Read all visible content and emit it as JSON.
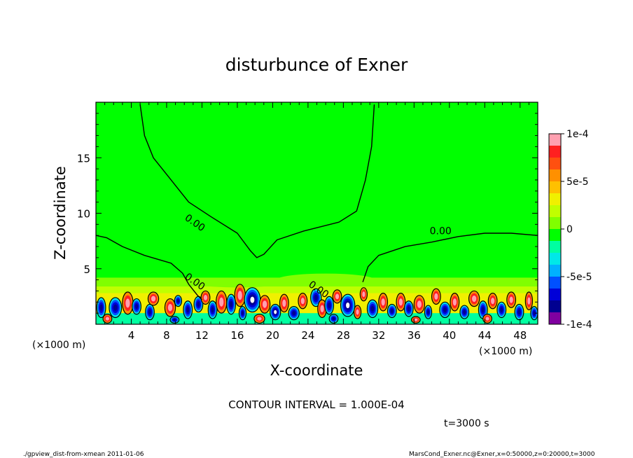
{
  "chart_data": {
    "type": "heatmap",
    "title": "disturbunce of Exner",
    "xlabel": "X-coordinate",
    "ylabel": "Z-coordinate",
    "x_unit_left": "(×1000 m)",
    "x_unit_right": "(×1000 m)",
    "xlim": [
      0,
      50
    ],
    "ylim": [
      0,
      20
    ],
    "x_ticks": [
      4,
      8,
      12,
      16,
      20,
      24,
      28,
      32,
      36,
      40,
      44,
      48
    ],
    "x_tick_labels": [
      "4",
      "8",
      "12",
      "16",
      "20",
      "24",
      "28",
      "32",
      "36",
      "40",
      "44",
      "48"
    ],
    "y_ticks": [
      5,
      10,
      15
    ],
    "y_tick_labels": [
      "5",
      "10",
      "15"
    ],
    "grid": false,
    "contour_labels": [
      {
        "text": "0.00",
        "x": 11,
        "y": 8.9
      },
      {
        "text": "0.00",
        "x": 39,
        "y": 8.1
      },
      {
        "text": "0.00",
        "x": 11,
        "y": 3.6
      },
      {
        "text": "0.00",
        "x": 25,
        "y": 2.9
      }
    ],
    "zero_contour_upper": [
      [
        5.0,
        19.8
      ],
      [
        5.5,
        17.0
      ],
      [
        6.5,
        15.0
      ],
      [
        8.5,
        13.0
      ],
      [
        10.5,
        11.0
      ],
      [
        13.0,
        9.7
      ],
      [
        16.0,
        8.2
      ],
      [
        17.5,
        6.6
      ],
      [
        18.2,
        6.0
      ],
      [
        19.0,
        6.3
      ],
      [
        20.5,
        7.6
      ],
      [
        23.5,
        8.4
      ],
      [
        27.5,
        9.2
      ],
      [
        29.5,
        10.2
      ],
      [
        30.5,
        13.0
      ],
      [
        31.2,
        16.0
      ],
      [
        31.5,
        19.8
      ]
    ],
    "zero_contour_left": [
      [
        0,
        8.0
      ],
      [
        1.2,
        7.8
      ],
      [
        3.0,
        7.0
      ],
      [
        5.5,
        6.2
      ],
      [
        8.5,
        5.5
      ],
      [
        9.8,
        4.6
      ],
      [
        10.5,
        3.6
      ],
      [
        11.5,
        2.6
      ],
      [
        12.0,
        2.2
      ]
    ],
    "zero_contour_right": [
      [
        30.2,
        3.8
      ],
      [
        30.8,
        5.2
      ],
      [
        32.0,
        6.2
      ],
      [
        35.0,
        7.0
      ],
      [
        38.0,
        7.4
      ],
      [
        41.0,
        7.9
      ],
      [
        44.0,
        8.2
      ],
      [
        47.0,
        8.2
      ],
      [
        50.0,
        8.0
      ]
    ],
    "colorbar": {
      "min": -0.0001,
      "max": 0.0001,
      "tick_labels": [
        "1e-4",
        "5e-5",
        "0",
        "-5e-5",
        "-1e-4"
      ],
      "colors": [
        "#ffa0b0",
        "#ff2020",
        "#ff5010",
        "#ff9000",
        "#ffc000",
        "#f0f000",
        "#c0ff00",
        "#80ff00",
        "#00ff00",
        "#00ffa0",
        "#00e8e8",
        "#00b0ff",
        "#0050ff",
        "#0000d8",
        "#000090",
        "#8000a0"
      ]
    },
    "blobs": [
      [
        0.6,
        1.5,
        0.5,
        0.9,
        -1
      ],
      [
        2.2,
        1.5,
        0.7,
        0.9,
        -1
      ],
      [
        3.6,
        1.9,
        0.6,
        1.0,
        1
      ],
      [
        4.6,
        1.6,
        0.5,
        0.7,
        -1
      ],
      [
        6.1,
        1.1,
        0.5,
        0.7,
        -1
      ],
      [
        6.5,
        2.3,
        0.6,
        0.6,
        1
      ],
      [
        8.4,
        1.5,
        0.6,
        0.8,
        1
      ],
      [
        9.3,
        2.1,
        0.4,
        0.5,
        -1
      ],
      [
        10.4,
        1.3,
        0.5,
        0.8,
        -1
      ],
      [
        11.6,
        1.8,
        0.5,
        0.7,
        -1
      ],
      [
        12.4,
        2.4,
        0.5,
        0.6,
        1
      ],
      [
        13.2,
        1.3,
        0.5,
        0.8,
        -1
      ],
      [
        14.2,
        2.0,
        0.6,
        1.0,
        1
      ],
      [
        15.3,
        1.8,
        0.5,
        0.9,
        -1
      ],
      [
        16.3,
        2.6,
        0.6,
        1.0,
        1
      ],
      [
        16.6,
        1.0,
        0.4,
        0.6,
        -1
      ],
      [
        17.7,
        2.2,
        0.9,
        1.1,
        -2
      ],
      [
        19.1,
        1.8,
        0.6,
        0.8,
        1
      ],
      [
        20.3,
        1.1,
        0.6,
        0.7,
        -2
      ],
      [
        21.3,
        1.9,
        0.5,
        0.8,
        1
      ],
      [
        22.4,
        1.0,
        0.6,
        0.6,
        -1
      ],
      [
        23.4,
        2.1,
        0.5,
        0.7,
        1
      ],
      [
        24.9,
        2.4,
        0.6,
        0.8,
        -1
      ],
      [
        25.6,
        1.4,
        0.5,
        0.8,
        1
      ],
      [
        26.4,
        1.7,
        0.5,
        0.8,
        -1
      ],
      [
        27.3,
        2.5,
        0.5,
        0.6,
        1
      ],
      [
        28.5,
        1.7,
        0.8,
        1.0,
        -2
      ],
      [
        29.6,
        1.1,
        0.4,
        0.6,
        1
      ],
      [
        30.3,
        2.7,
        0.4,
        0.6,
        1
      ],
      [
        31.3,
        1.4,
        0.6,
        0.8,
        -1
      ],
      [
        32.5,
        2.0,
        0.5,
        0.8,
        1
      ],
      [
        33.5,
        1.2,
        0.5,
        0.6,
        -1
      ],
      [
        34.5,
        2.0,
        0.5,
        0.8,
        1
      ],
      [
        35.4,
        1.4,
        0.5,
        0.7,
        -1
      ],
      [
        36.6,
        1.8,
        0.6,
        0.8,
        1
      ],
      [
        37.6,
        1.1,
        0.4,
        0.6,
        -1
      ],
      [
        38.5,
        2.5,
        0.5,
        0.7,
        1
      ],
      [
        39.5,
        1.3,
        0.6,
        0.7,
        -1
      ],
      [
        40.6,
        2.0,
        0.5,
        0.8,
        1
      ],
      [
        41.7,
        1.1,
        0.5,
        0.6,
        -1
      ],
      [
        42.8,
        2.3,
        0.6,
        0.7,
        1
      ],
      [
        43.8,
        1.3,
        0.5,
        0.8,
        -1
      ],
      [
        44.9,
        2.1,
        0.5,
        0.7,
        1
      ],
      [
        45.9,
        1.3,
        0.5,
        0.7,
        -1
      ],
      [
        47.0,
        2.2,
        0.5,
        0.7,
        1
      ],
      [
        47.9,
        1.1,
        0.5,
        0.7,
        -1
      ],
      [
        49.0,
        2.1,
        0.4,
        0.8,
        1
      ],
      [
        49.6,
        1.0,
        0.4,
        0.6,
        -1
      ],
      [
        1.3,
        0.5,
        0.5,
        0.4,
        1
      ],
      [
        8.9,
        0.4,
        0.5,
        0.3,
        -1
      ],
      [
        18.5,
        0.5,
        0.6,
        0.4,
        1
      ],
      [
        26.9,
        0.5,
        0.5,
        0.4,
        -1
      ],
      [
        36.2,
        0.4,
        0.5,
        0.3,
        1
      ],
      [
        44.3,
        0.5,
        0.5,
        0.4,
        1
      ]
    ]
  },
  "contour_interval": "CONTOUR INTERVAL = 1.000E-04",
  "time_label": "t=3000 s",
  "footer_left": "./gpview_dist-from-xmean   2011-01-06",
  "footer_right": "MarsCond_Exner.nc@Exner,x=0:50000,z=0:20000,t=3000"
}
